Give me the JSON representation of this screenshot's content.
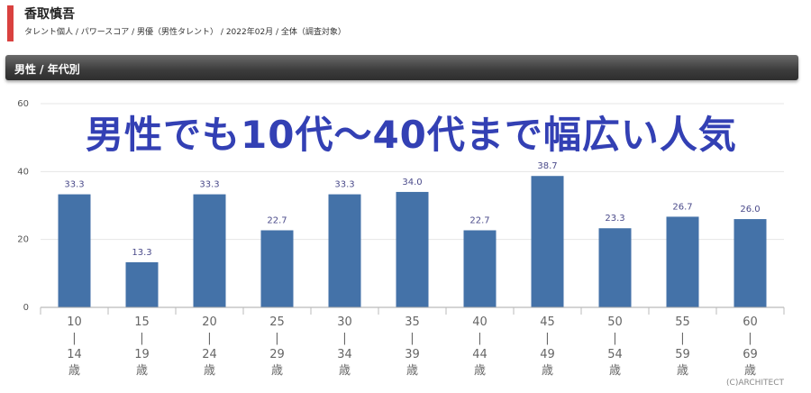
{
  "header": {
    "name": "香取慎吾",
    "breadcrumb": "タレント個人 / パワースコア / 男優（男性タレント） / 2022年02月 / 全体（調査対象）"
  },
  "section": {
    "label": "男性 / 年代別"
  },
  "headline": "男性でも10代～40代まで幅広い人気",
  "copyright": "(C)ARCHITECT",
  "colors": {
    "bar": "#4472a8",
    "accent": "#d9413f",
    "headline": "#3340b4"
  },
  "chart_data": {
    "type": "bar",
    "categories": [
      "10|14歳",
      "15|19歳",
      "20|24歳",
      "25|29歳",
      "30|34歳",
      "35|39歳",
      "40|44歳",
      "45|49歳",
      "50|54歳",
      "55|59歳",
      "60|69歳"
    ],
    "category_lines": [
      [
        "10",
        "|",
        "14",
        "歳"
      ],
      [
        "15",
        "|",
        "19",
        "歳"
      ],
      [
        "20",
        "|",
        "24",
        "歳"
      ],
      [
        "25",
        "|",
        "29",
        "歳"
      ],
      [
        "30",
        "|",
        "34",
        "歳"
      ],
      [
        "35",
        "|",
        "39",
        "歳"
      ],
      [
        "40",
        "|",
        "44",
        "歳"
      ],
      [
        "45",
        "|",
        "49",
        "歳"
      ],
      [
        "50",
        "|",
        "54",
        "歳"
      ],
      [
        "55",
        "|",
        "59",
        "歳"
      ],
      [
        "60",
        "|",
        "69",
        "歳"
      ]
    ],
    "values": [
      33.3,
      13.3,
      33.3,
      22.7,
      33.3,
      34.0,
      22.7,
      38.7,
      23.3,
      26.7,
      26.0
    ],
    "value_labels": [
      "33.3",
      "13.3",
      "33.3",
      "22.7",
      "33.3",
      "34.0",
      "22.7",
      "38.7",
      "23.3",
      "26.7",
      "26.0"
    ],
    "title": "",
    "xlabel": "",
    "ylabel": "",
    "ylim": [
      0,
      60
    ],
    "yticks": [
      0,
      20,
      40,
      60
    ],
    "grid": true,
    "legend": "none"
  }
}
